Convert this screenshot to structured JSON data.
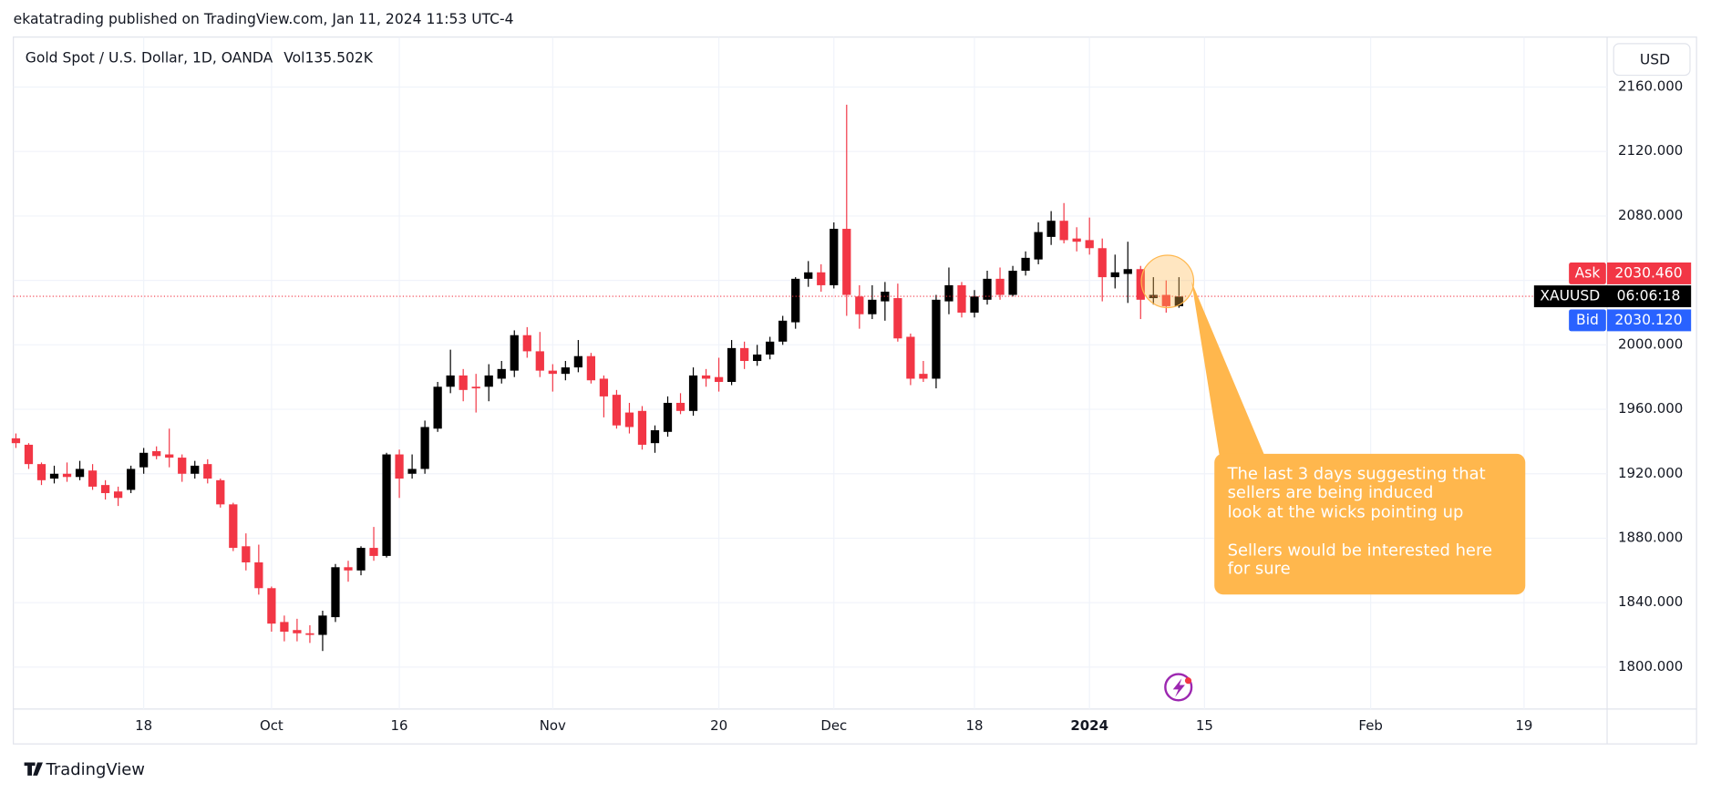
{
  "header": "ekatatrading published on TradingView.com, Jan 11, 2024 11:53 UTC-4",
  "currency": "USD",
  "brand": "TradingView",
  "chart_data": {
    "type": "candlestick",
    "title": "Gold Spot / U.S. Dollar, 1D, OANDA",
    "volume_label": "Vol135.502K",
    "up_color": "#000000",
    "down_color": "#f23645",
    "x": [
      0,
      1,
      2,
      3,
      4,
      5,
      6,
      7,
      8,
      9,
      10,
      11,
      12,
      13,
      14,
      15,
      16,
      17,
      18,
      19,
      20,
      21,
      22,
      23,
      24,
      25,
      26,
      27,
      28,
      29,
      30,
      31,
      32,
      33,
      34,
      35,
      36,
      37,
      38,
      39,
      40,
      41,
      42,
      43,
      44,
      45,
      46,
      47,
      48,
      49,
      50,
      51,
      52,
      53,
      54,
      55,
      56,
      57,
      58,
      59,
      60,
      61,
      62,
      63,
      64,
      65,
      66,
      67,
      68,
      69,
      70,
      71,
      72,
      73,
      74,
      75,
      76,
      77,
      78,
      79,
      80,
      81,
      82,
      83,
      84,
      85,
      86,
      87,
      88,
      89,
      90,
      91
    ],
    "open": [
      1942,
      1938,
      1926,
      1917,
      1920,
      1918,
      1922,
      1913,
      1909,
      1910,
      1924,
      1934,
      1932,
      1930,
      1920,
      1926,
      1916,
      1901,
      1875,
      1865,
      1849,
      1828,
      1823,
      1821,
      1820,
      1831,
      1862,
      1860,
      1874,
      1869,
      1932,
      1920,
      1923,
      1948,
      1974,
      1981,
      1974,
      1974,
      1979,
      1984,
      2006,
      1996,
      1984,
      1982,
      1986,
      1993,
      1979,
      1969,
      1958,
      1959,
      1939,
      1946,
      1964,
      1959,
      1981,
      1980,
      1977,
      1998,
      1990,
      1994,
      2002,
      2014,
      2041,
      2045,
      2037,
      2072,
      2030,
      2019,
      2027,
      2029,
      2005,
      1982,
      1979,
      2027,
      2037,
      2020,
      2028,
      2041,
      2031,
      2046,
      2053,
      2067,
      2077,
      2066,
      2065,
      2060,
      2042,
      2044,
      2047,
      2029,
      2031,
      2024
    ],
    "high": [
      1945,
      1939,
      1927,
      1925,
      1927,
      1928,
      1926,
      1916,
      1912,
      1925,
      1936,
      1937,
      1948,
      1932,
      1928,
      1929,
      1917,
      1902,
      1883,
      1876,
      1850,
      1832,
      1830,
      1826,
      1835,
      1864,
      1866,
      1875,
      1887,
      1933,
      1935,
      1932,
      1953,
      1977,
      1997,
      1985,
      1982,
      1988,
      1990,
      2009,
      2011,
      2008,
      1988,
      1990,
      2003,
      1995,
      1981,
      1972,
      1964,
      1962,
      1950,
      1968,
      1970,
      1986,
      1985,
      1992,
      2003,
      2002,
      2000,
      2005,
      2018,
      2042,
      2052,
      2050,
      2076,
      2149,
      2037,
      2037,
      2039,
      2038,
      2007,
      1990,
      2031,
      2048,
      2039,
      2034,
      2046,
      2048,
      2049,
      2058,
      2076,
      2083,
      2088,
      2073,
      2079,
      2066,
      2056,
      2064,
      2049,
      2042,
      2040,
      2042
    ],
    "low": [
      1936,
      1923,
      1913,
      1914,
      1915,
      1916,
      1910,
      1904,
      1900,
      1908,
      1920,
      1929,
      1924,
      1915,
      1917,
      1914,
      1899,
      1872,
      1860,
      1845,
      1822,
      1816,
      1816,
      1815,
      1810,
      1828,
      1853,
      1857,
      1866,
      1868,
      1905,
      1917,
      1920,
      1946,
      1970,
      1965,
      1958,
      1965,
      1976,
      1980,
      1992,
      1980,
      1971,
      1978,
      1983,
      1976,
      1955,
      1948,
      1945,
      1935,
      1933,
      1943,
      1957,
      1956,
      1974,
      1971,
      1975,
      1985,
      1987,
      1991,
      2000,
      2010,
      2036,
      2033,
      2035,
      2018,
      2010,
      2016,
      2015,
      2002,
      1975,
      1977,
      1973,
      2019,
      2017,
      2017,
      2025,
      2028,
      2030,
      2043,
      2050,
      2062,
      2063,
      2058,
      2056,
      2027,
      2035,
      2026,
      2016,
      2025,
      2020,
      2023
    ],
    "close": [
      1939,
      1926,
      1916,
      1920,
      1918,
      1923,
      1912,
      1908,
      1905,
      1923,
      1933,
      1931,
      1930,
      1920,
      1925,
      1917,
      1901,
      1874,
      1865,
      1849,
      1827,
      1822,
      1821,
      1820,
      1832,
      1862,
      1860,
      1874,
      1869,
      1932,
      1917,
      1923,
      1949,
      1974,
      1981,
      1972,
      1973,
      1981,
      1985,
      2006,
      1996,
      1984,
      1982,
      1986,
      1993,
      1978,
      1968,
      1950,
      1949,
      1938,
      1947,
      1964,
      1959,
      1981,
      1979,
      1977,
      1998,
      1990,
      1994,
      2002,
      2015,
      2041,
      2045,
      2037,
      2072,
      2031,
      2019,
      2028,
      2033,
      2004,
      1979,
      1979,
      2028,
      2037,
      2020,
      2030,
      2041,
      2031,
      2046,
      2054,
      2070,
      2077,
      2065,
      2064,
      2060,
      2042,
      2045,
      2047,
      2028,
      2031,
      2024,
      2030
    ],
    "xlim": [
      -0.2,
      124.5
    ],
    "xticks": [
      {
        "value": 10,
        "label": "18"
      },
      {
        "value": 20,
        "label": "Oct"
      },
      {
        "value": 30,
        "label": "16"
      },
      {
        "value": 42,
        "label": "Nov"
      },
      {
        "value": 55,
        "label": "20"
      },
      {
        "value": 64,
        "label": "Dec"
      },
      {
        "value": 75,
        "label": "18"
      },
      {
        "value": 84,
        "label": "2024"
      },
      {
        "value": 93,
        "label": "15"
      },
      {
        "value": 106,
        "label": "Feb"
      },
      {
        "value": 118,
        "label": "19"
      }
    ],
    "ylim": [
      1774,
      2191
    ],
    "yticks": [
      {
        "value": 1800,
        "label": "1800.000"
      },
      {
        "value": 1840,
        "label": "1840.000"
      },
      {
        "value": 1880,
        "label": "1880.000"
      },
      {
        "value": 1920,
        "label": "1920.000"
      },
      {
        "value": 1960,
        "label": "1960.000"
      },
      {
        "value": 2000,
        "label": "2000.000"
      },
      {
        "value": 2040,
        "label": "2040.000"
      },
      {
        "value": 2080,
        "label": "2080.000"
      },
      {
        "value": 2120,
        "label": "2120.000"
      },
      {
        "value": 2160,
        "label": "2160.000"
      }
    ],
    "grid": true,
    "symbol": "XAUUSD",
    "countdown": "06:06:18",
    "quotes": [
      {
        "name": "Ask",
        "value": 2030.46,
        "value_label": "2030.460",
        "color": "#f23645"
      },
      {
        "name": "Bid",
        "value": 2030.12,
        "value_label": "2030.120",
        "color": "#2962ff"
      }
    ],
    "annotation": {
      "lines": [
        "The last 3 days suggesting that",
        "sellers are being induced",
        "look at the wicks pointing up",
        "Sellers would be interested here",
        "for sure"
      ],
      "color": "#ffb74d"
    }
  }
}
